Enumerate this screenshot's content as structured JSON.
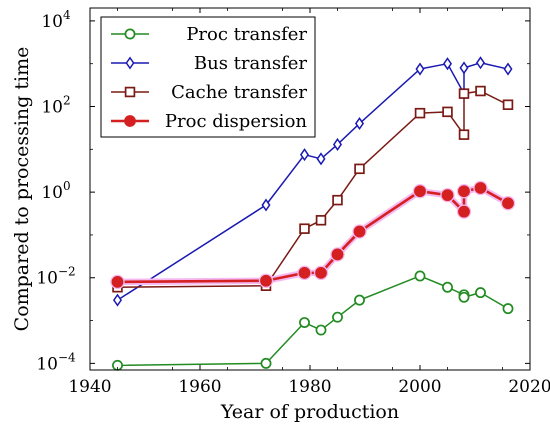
{
  "chart_data": {
    "type": "line",
    "xlabel": "Year of production",
    "ylabel": "Compared to processing time",
    "xlim": [
      1940,
      2020
    ],
    "ylim": [
      7e-05,
      20000
    ],
    "y_scale": "log",
    "x_ticks": [
      1940,
      1960,
      1980,
      2000,
      2020
    ],
    "x_tick_labels": [
      "1940",
      "1960",
      "1980",
      "2000",
      "2020"
    ],
    "y_ticks": [
      0.0001,
      0.01,
      1,
      100,
      10000
    ],
    "y_tick_labels": [
      {
        "base": "10",
        "exp": "−4"
      },
      {
        "base": "10",
        "exp": "−2"
      },
      {
        "base": "10",
        "exp": "0"
      },
      {
        "base": "10",
        "exp": "2"
      },
      {
        "base": "10",
        "exp": "4"
      }
    ],
    "legend_position": "top-left",
    "series": [
      {
        "name": "Proc transfer",
        "color": "#228b22",
        "marker": "circle-open",
        "x": [
          1945,
          1972,
          1979,
          1982,
          1985,
          1989,
          2000,
          2005,
          2008,
          2008,
          2011,
          2016
        ],
        "y": [
          9e-05,
          0.0001,
          0.0009,
          0.0006,
          0.0012,
          0.003,
          0.011,
          0.006,
          0.004,
          0.0035,
          0.0045,
          0.0019
        ]
      },
      {
        "name": "Bus transfer",
        "color": "#1a1ab3",
        "marker": "diamond-open",
        "x": [
          1945,
          1972,
          1979,
          1982,
          1985,
          1989,
          2000,
          2005,
          2008,
          2008,
          2011,
          2016
        ],
        "y": [
          0.003,
          0.5,
          7.5,
          6,
          13,
          40,
          750,
          1000,
          200,
          800,
          1050,
          750
        ]
      },
      {
        "name": "Cache transfer",
        "color": "#7a1a14",
        "marker": "square-open",
        "x": [
          1945,
          1972,
          1979,
          1982,
          1985,
          1989,
          2000,
          2005,
          2008,
          2008,
          2011,
          2016
        ],
        "y": [
          0.006,
          0.0065,
          0.14,
          0.22,
          0.65,
          3.5,
          70,
          75,
          22,
          200,
          230,
          110
        ]
      },
      {
        "name": "Proc dispersion",
        "color": "#d42020",
        "marker": "circle-filled",
        "x": [
          1945,
          1972,
          1979,
          1982,
          1985,
          1989,
          2000,
          2005,
          2008,
          2008,
          2011,
          2016
        ],
        "y": [
          0.008,
          0.0085,
          0.013,
          0.013,
          0.035,
          0.12,
          1.05,
          0.85,
          0.35,
          1.05,
          1.25,
          0.55
        ]
      }
    ]
  }
}
